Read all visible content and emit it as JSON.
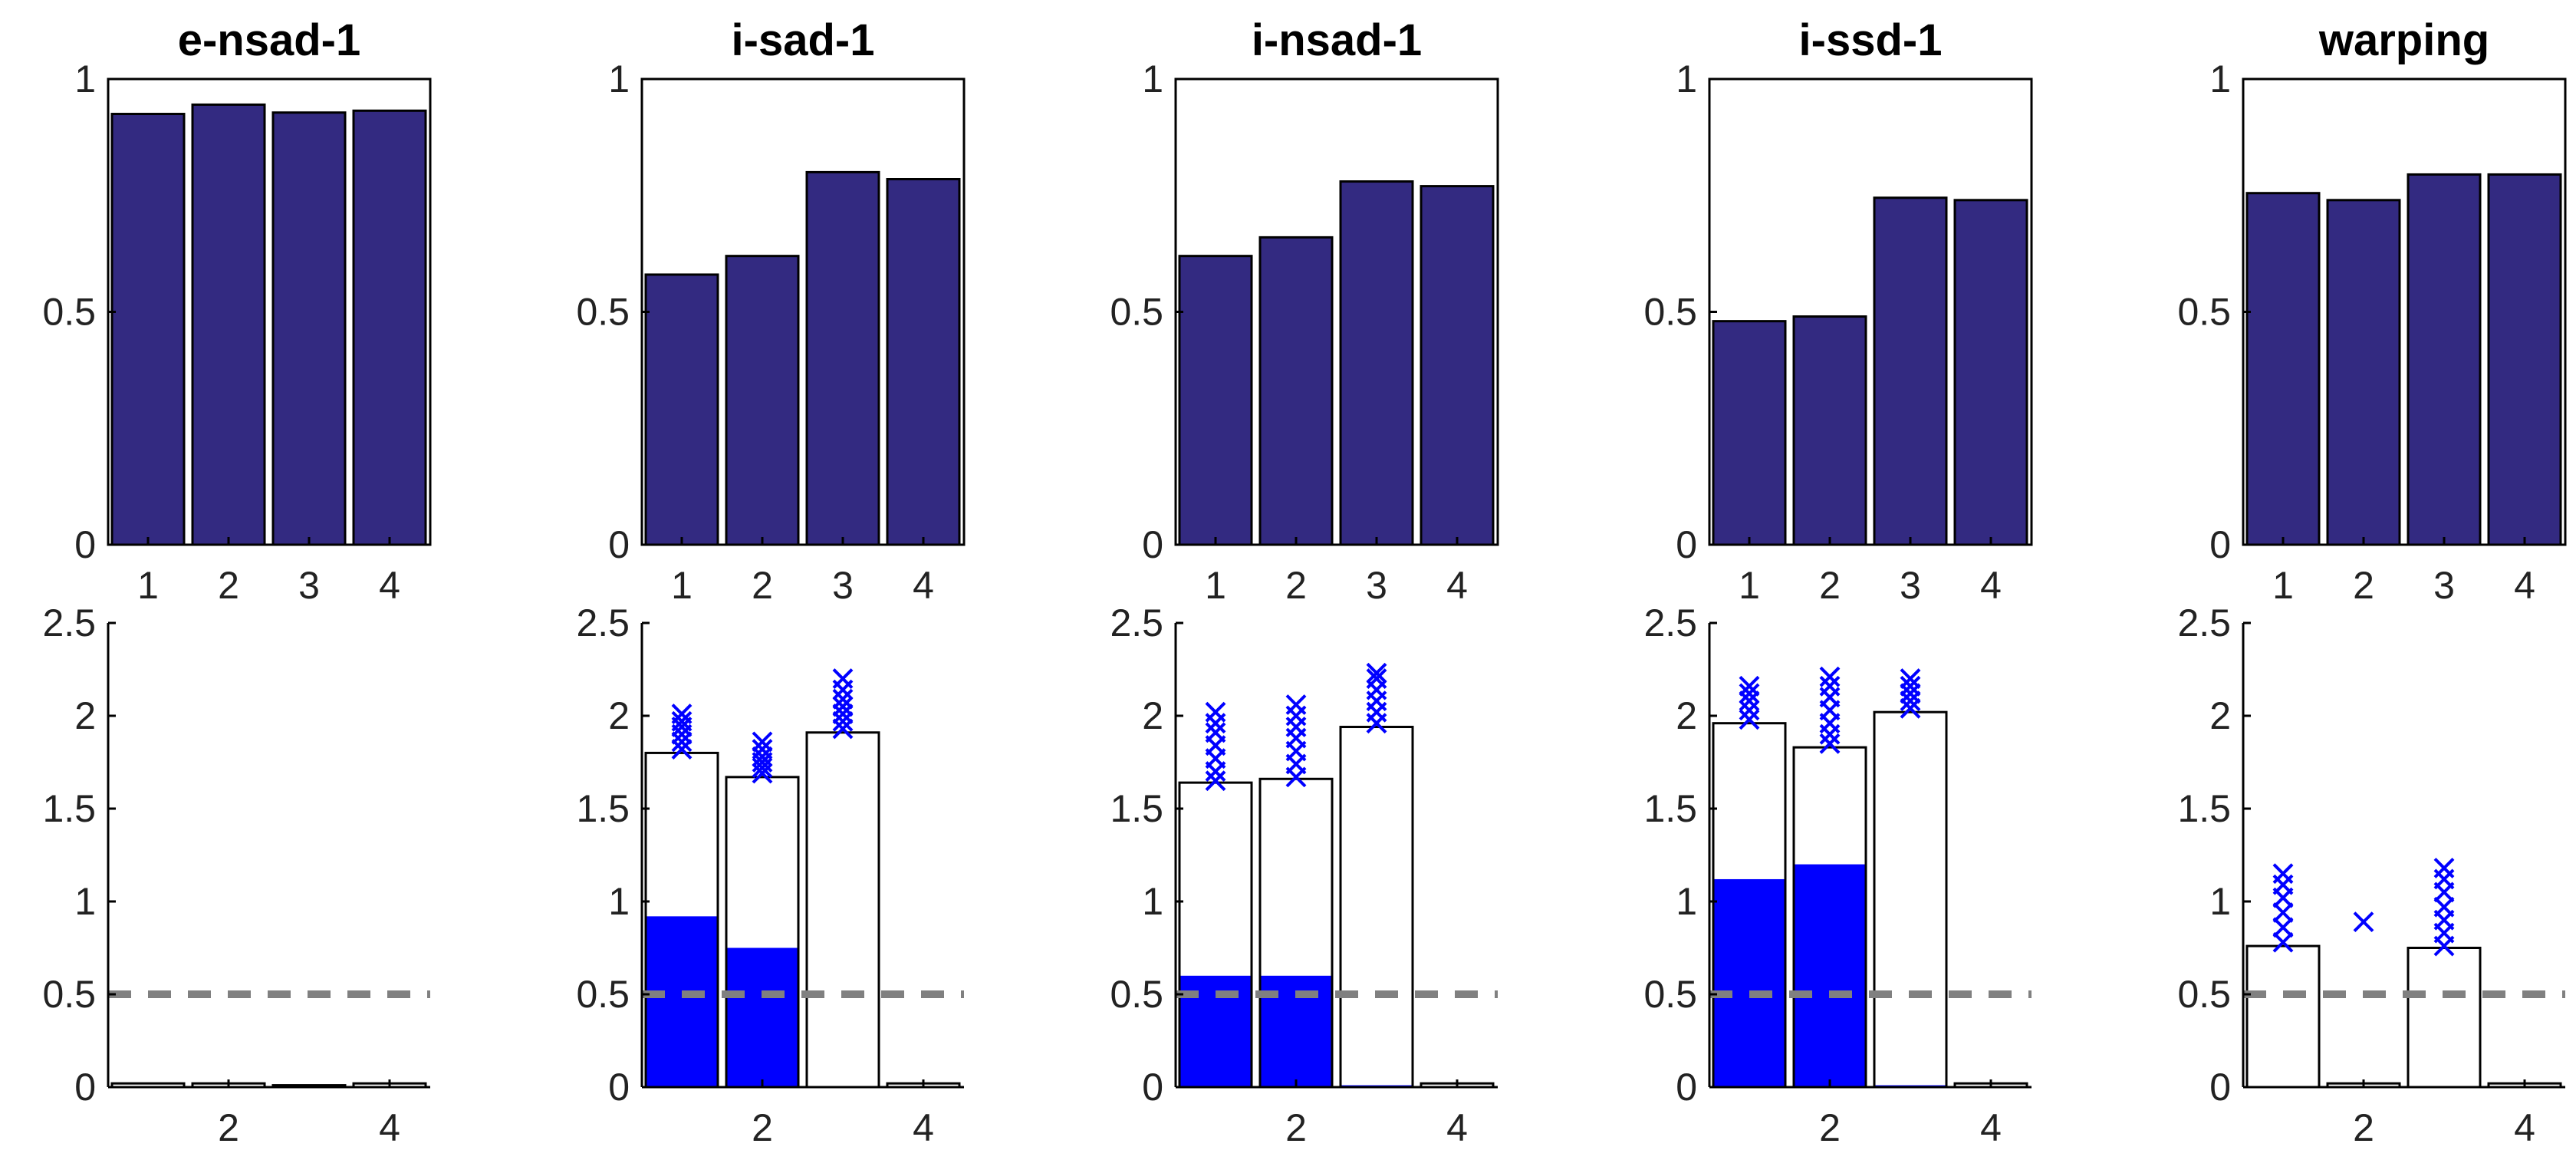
{
  "chart_data": [
    {
      "type": "bar",
      "row": "top",
      "title": "e-nsad-1",
      "categories": [
        "1",
        "2",
        "3",
        "4"
      ],
      "values": [
        0.925,
        0.945,
        0.928,
        0.932
      ],
      "ylim": [
        0,
        1
      ],
      "yticks": [
        "0",
        "0.5",
        "1"
      ],
      "xticks": [
        "1",
        "2",
        "3",
        "4"
      ],
      "colors": {
        "bar": "#332a81"
      }
    },
    {
      "type": "bar",
      "row": "top",
      "title": "i-sad-1",
      "categories": [
        "1",
        "2",
        "3",
        "4"
      ],
      "values": [
        0.58,
        0.62,
        0.8,
        0.785
      ],
      "ylim": [
        0,
        1
      ],
      "yticks": [
        "0",
        "0.5",
        "1"
      ],
      "xticks": [
        "1",
        "2",
        "3",
        "4"
      ],
      "colors": {
        "bar": "#332a81"
      }
    },
    {
      "type": "bar",
      "row": "top",
      "title": "i-nsad-1",
      "categories": [
        "1",
        "2",
        "3",
        "4"
      ],
      "values": [
        0.62,
        0.66,
        0.78,
        0.77
      ],
      "ylim": [
        0,
        1
      ],
      "yticks": [
        "0",
        "0.5",
        "1"
      ],
      "xticks": [
        "1",
        "2",
        "3",
        "4"
      ],
      "colors": {
        "bar": "#332a81"
      }
    },
    {
      "type": "bar",
      "row": "top",
      "title": "i-ssd-1",
      "categories": [
        "1",
        "2",
        "3",
        "4"
      ],
      "values": [
        0.48,
        0.49,
        0.745,
        0.74
      ],
      "ylim": [
        0,
        1
      ],
      "yticks": [
        "0",
        "0.5",
        "1"
      ],
      "xticks": [
        "1",
        "2",
        "3",
        "4"
      ],
      "colors": {
        "bar": "#332a81"
      }
    },
    {
      "type": "bar",
      "row": "top",
      "title": "warping",
      "categories": [
        "1",
        "2",
        "3",
        "4"
      ],
      "values": [
        0.755,
        0.74,
        0.795,
        0.795
      ],
      "ylim": [
        0,
        1
      ],
      "yticks": [
        "0",
        "0.5",
        "1"
      ],
      "xticks": [
        "1",
        "2",
        "3",
        "4"
      ],
      "colors": {
        "bar": "#332a81"
      }
    },
    {
      "type": "bar",
      "row": "bottom",
      "categories": [
        "1",
        "2",
        "3",
        "4"
      ],
      "total": [
        0.02,
        0.02,
        0.01,
        0.02
      ],
      "filled": [
        0,
        0,
        0,
        0
      ],
      "markers": [
        [],
        [],
        [],
        []
      ],
      "reference_line": 0.5,
      "ylim": [
        0,
        2.5
      ],
      "yticks": [
        "0",
        "0.5",
        "1",
        "1.5",
        "2",
        "2.5"
      ],
      "xticks": [
        "2",
        "4"
      ],
      "colors": {
        "fill": "#0000ff",
        "marker": "#0000ff",
        "reference": "#808080"
      }
    },
    {
      "type": "bar",
      "row": "bottom",
      "categories": [
        "1",
        "2",
        "3",
        "4"
      ],
      "total": [
        1.8,
        1.67,
        1.91,
        0.02
      ],
      "filled": [
        0.92,
        0.75,
        0,
        0
      ],
      "markers": [
        [
          1.82,
          1.86,
          1.9,
          1.94,
          1.97,
          2.01
        ],
        [
          1.69,
          1.72,
          1.75,
          1.78,
          1.82,
          1.86
        ],
        [
          1.93,
          1.97,
          2.01,
          2.05,
          2.09,
          2.14,
          2.2
        ],
        []
      ],
      "reference_line": 0.5,
      "ylim": [
        0,
        2.5
      ],
      "yticks": [
        "0",
        "0.5",
        "1",
        "1.5",
        "2",
        "2.5"
      ],
      "xticks": [
        "2",
        "4"
      ],
      "colors": {
        "fill": "#0000ff",
        "marker": "#0000ff",
        "reference": "#808080"
      }
    },
    {
      "type": "bar",
      "row": "bottom",
      "categories": [
        "1",
        "2",
        "3",
        "4"
      ],
      "total": [
        1.64,
        1.66,
        1.94,
        0.02
      ],
      "filled": [
        0.6,
        0.6,
        0.01,
        0
      ],
      "markers": [
        [
          1.65,
          1.7,
          1.77,
          1.84,
          1.91,
          1.96,
          2.02
        ],
        [
          1.67,
          1.74,
          1.81,
          1.88,
          1.94,
          2.0,
          2.06
        ],
        [
          1.96,
          2.02,
          2.08,
          2.14,
          2.2,
          2.23
        ],
        []
      ],
      "reference_line": 0.5,
      "ylim": [
        0,
        2.5
      ],
      "yticks": [
        "0",
        "0.5",
        "1",
        "1.5",
        "2",
        "2.5"
      ],
      "xticks": [
        "2",
        "4"
      ],
      "colors": {
        "fill": "#0000ff",
        "marker": "#0000ff",
        "reference": "#808080"
      }
    },
    {
      "type": "bar",
      "row": "bottom",
      "categories": [
        "1",
        "2",
        "3",
        "4"
      ],
      "total": [
        1.96,
        1.83,
        2.02,
        0.02
      ],
      "filled": [
        1.12,
        1.2,
        0.01,
        0
      ],
      "markers": [
        [
          1.98,
          2.03,
          2.08,
          2.12,
          2.16
        ],
        [
          1.85,
          1.9,
          1.96,
          2.03,
          2.1,
          2.16,
          2.21
        ],
        [
          2.04,
          2.08,
          2.12,
          2.16,
          2.2
        ],
        []
      ],
      "reference_line": 0.5,
      "ylim": [
        0,
        2.5
      ],
      "yticks": [
        "0",
        "0.5",
        "1",
        "1.5",
        "2",
        "2.5"
      ],
      "xticks": [
        "2",
        "4"
      ],
      "colors": {
        "fill": "#0000ff",
        "marker": "#0000ff",
        "reference": "#808080"
      }
    },
    {
      "type": "bar",
      "row": "bottom",
      "categories": [
        "1",
        "2",
        "3",
        "4"
      ],
      "total": [
        0.76,
        0.02,
        0.75,
        0.02
      ],
      "filled": [
        0,
        0,
        0,
        0
      ],
      "markers": [
        [
          0.78,
          0.86,
          0.94,
          1.02,
          1.09,
          1.15
        ],
        [
          0.89
        ],
        [
          0.76,
          0.83,
          0.9,
          0.97,
          1.05,
          1.12,
          1.18
        ],
        []
      ],
      "reference_line": 0.5,
      "ylim": [
        0,
        2.5
      ],
      "yticks": [
        "0",
        "0.5",
        "1",
        "1.5",
        "2",
        "2.5"
      ],
      "xticks": [
        "2",
        "4"
      ],
      "colors": {
        "fill": "#0000ff",
        "marker": "#0000ff",
        "reference": "#808080"
      }
    }
  ]
}
